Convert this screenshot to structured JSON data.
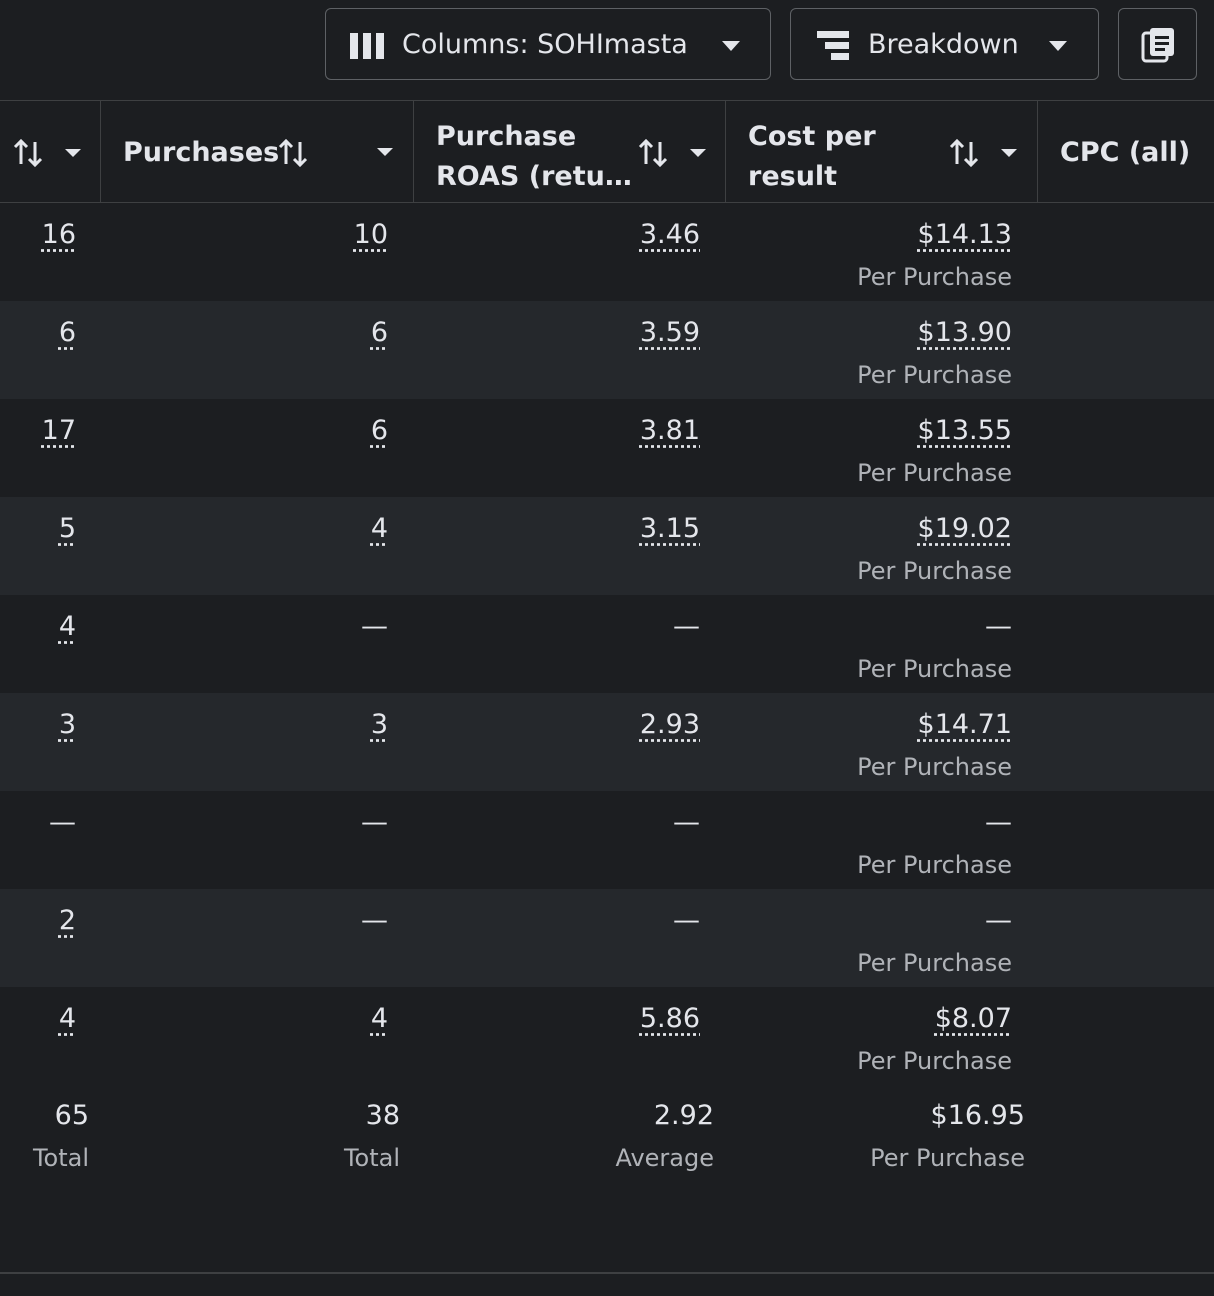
{
  "toolbar": {
    "columns_button": "Columns: SOHImasta",
    "breakdown_button": "Breakdown"
  },
  "table": {
    "headers": [
      "Purchases",
      "Purchase ROAS (retu…",
      "Cost per result",
      "CPC (all)"
    ],
    "rows": [
      [
        "16",
        "10",
        "3.46",
        "$14.13",
        "Per Purchase"
      ],
      [
        "6",
        "6",
        "3.59",
        "$13.90",
        "Per Purchase"
      ],
      [
        "17",
        "6",
        "3.81",
        "$13.55",
        "Per Purchase"
      ],
      [
        "5",
        "4",
        "3.15",
        "$19.02",
        "Per Purchase"
      ],
      [
        "4",
        "—",
        "—",
        "—",
        "Per Purchase"
      ],
      [
        "3",
        "3",
        "2.93",
        "$14.71",
        "Per Purchase"
      ],
      [
        "—",
        "—",
        "—",
        "—",
        "Per Purchase"
      ],
      [
        "2",
        "—",
        "—",
        "—",
        "Per Purchase"
      ],
      [
        "4",
        "4",
        "5.86",
        "$8.07",
        "Per Purchase"
      ]
    ],
    "totals": [
      [
        "65",
        "Total"
      ],
      [
        "38",
        "Total"
      ],
      [
        "2.92",
        "Average"
      ],
      [
        "$16.95",
        "Per Purchase"
      ]
    ]
  }
}
